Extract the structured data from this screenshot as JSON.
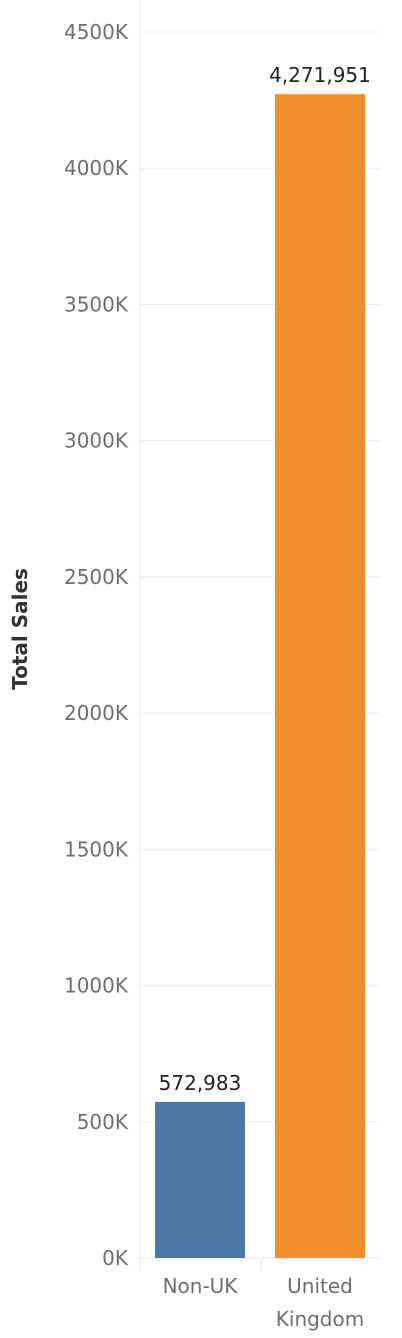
{
  "chart_data": {
    "type": "bar",
    "title": "",
    "xlabel": "",
    "ylabel": "Total Sales",
    "ylim": [
      0,
      4500000
    ],
    "yticks": [
      {
        "value": 0,
        "label": "0K"
      },
      {
        "value": 500000,
        "label": "500K"
      },
      {
        "value": 1000000,
        "label": "1000K"
      },
      {
        "value": 1500000,
        "label": "1500K"
      },
      {
        "value": 2000000,
        "label": "2000K"
      },
      {
        "value": 2500000,
        "label": "2500K"
      },
      {
        "value": 3000000,
        "label": "3000K"
      },
      {
        "value": 3500000,
        "label": "3500K"
      },
      {
        "value": 4000000,
        "label": "4000K"
      },
      {
        "value": 4500000,
        "label": "4500K"
      }
    ],
    "categories": [
      {
        "lines": [
          "Non-UK"
        ]
      },
      {
        "lines": [
          "United",
          "Kingdom"
        ]
      }
    ],
    "values": [
      572983,
      4271951
    ],
    "value_labels": [
      "572,983",
      "4,271,951"
    ],
    "colors": [
      "#4e79a7",
      "#f28e2b"
    ],
    "grid": true
  }
}
